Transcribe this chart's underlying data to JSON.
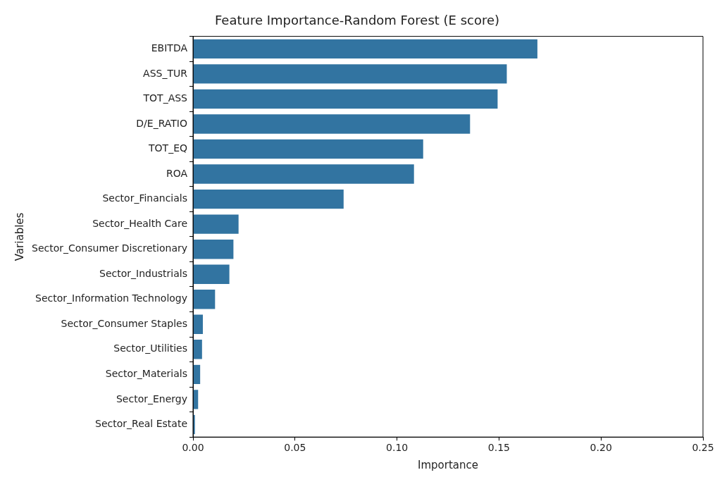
{
  "chart_data": {
    "type": "bar",
    "orientation": "horizontal",
    "title": "Feature Importance-Random Forest (E score)",
    "xlabel": "Importance",
    "ylabel": "Variables",
    "categories": [
      "EBITDA",
      "ASS_TUR",
      "TOT_ASS",
      "D/E_RATIO",
      "TOT_EQ",
      "ROA",
      "Sector_Financials",
      "Sector_Health Care",
      "Sector_Consumer Discretionary",
      "Sector_Industrials",
      "Sector_Information Technology",
      "Sector_Consumer Staples",
      "Sector_Utilities",
      "Sector_Materials",
      "Sector_Energy",
      "Sector_Real Estate"
    ],
    "values": [
      0.169,
      0.154,
      0.1495,
      0.136,
      0.113,
      0.1085,
      0.074,
      0.0225,
      0.02,
      0.018,
      0.011,
      0.005,
      0.0046,
      0.0037,
      0.0027,
      0.0011
    ],
    "color": "#3274a1",
    "xlim": [
      0,
      0.25
    ],
    "xticks": [
      {
        "value": 0,
        "label": "0.00"
      },
      0.05,
      {
        "value": 0.1,
        "label": "0.10"
      },
      0.15,
      {
        "value": 0.2,
        "label": "0.20"
      },
      0.25
    ],
    "grid": false,
    "legend": false
  }
}
